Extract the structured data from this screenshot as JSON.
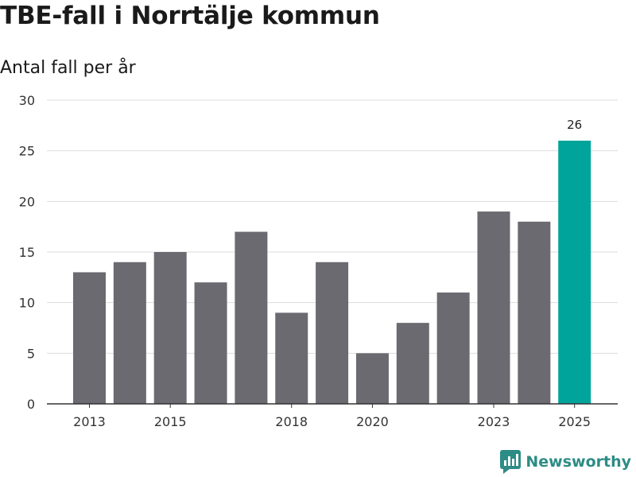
{
  "chart_data": {
    "type": "bar",
    "title": "TBE-fall i Norrtälje kommun",
    "ylabel": "Antal fall per år",
    "xlabel": "",
    "categories": [
      "2013",
      "2014",
      "2015",
      "2016",
      "2017",
      "2018",
      "2019",
      "2020",
      "2021",
      "2022",
      "2023",
      "2024",
      "2025"
    ],
    "values": [
      13,
      14,
      15,
      12,
      17,
      9,
      14,
      5,
      8,
      11,
      19,
      18,
      26
    ],
    "x_tick_labels": [
      "2013",
      "2015",
      "2018",
      "2020",
      "2023",
      "2025"
    ],
    "y_ticks": [
      "0",
      "5",
      "10",
      "15",
      "20",
      "25",
      "30"
    ],
    "ylim": [
      0,
      30
    ],
    "grid": true,
    "highlight_category": "2025",
    "data_labels": [
      {
        "category": "2025",
        "text": "26"
      }
    ],
    "colors": {
      "bar": "#6b6a70",
      "highlight": "#00a49a",
      "grid": "#dddddd",
      "axis": "#333333"
    }
  },
  "brand": {
    "name": "Newsworthy",
    "icon": "newsworthy-logo-icon",
    "color": "#2d8c85"
  }
}
